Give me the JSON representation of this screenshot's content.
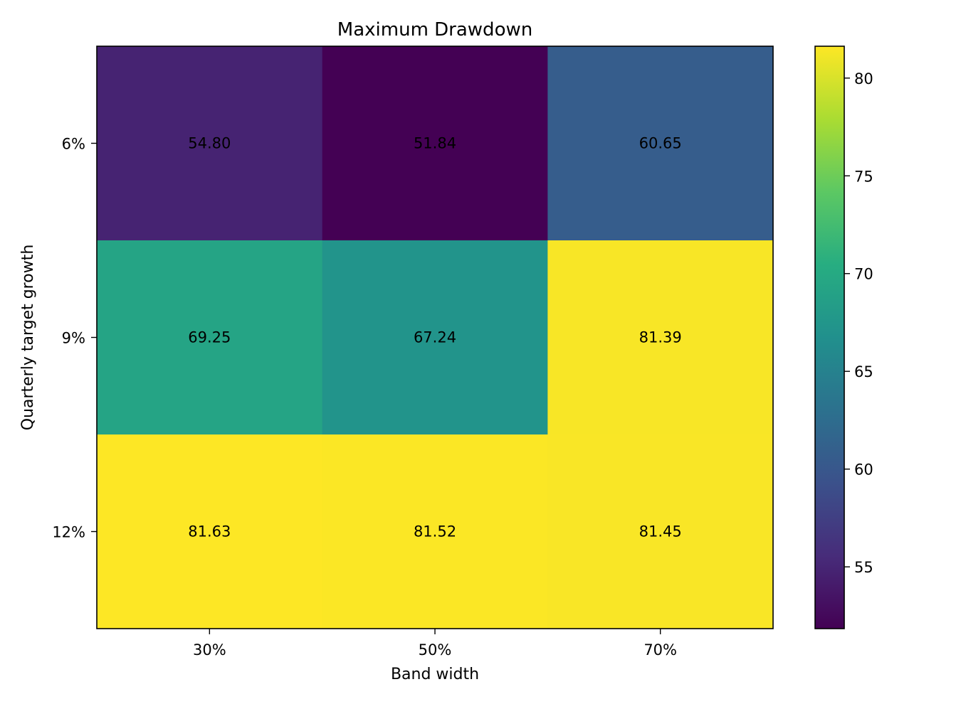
{
  "chart_data": {
    "type": "heatmap",
    "title": "Maximum Drawdown",
    "xlabel": "Band width",
    "ylabel": "Quarterly target growth",
    "x_categories": [
      "30%",
      "50%",
      "70%"
    ],
    "y_categories": [
      "6%",
      "9%",
      "12%"
    ],
    "values": [
      [
        54.8,
        51.84,
        60.65
      ],
      [
        69.25,
        67.24,
        81.39
      ],
      [
        81.63,
        81.52,
        81.45
      ]
    ],
    "value_labels": [
      [
        "54.80",
        "51.84",
        "60.65"
      ],
      [
        "69.25",
        "67.24",
        "81.39"
      ],
      [
        "81.63",
        "81.52",
        "81.45"
      ]
    ],
    "colorbar": {
      "colormap": "viridis",
      "vmin": 51.84,
      "vmax": 81.63,
      "ticks": [
        55,
        60,
        65,
        70,
        75,
        80
      ],
      "tick_labels": [
        "55",
        "60",
        "65",
        "70",
        "75",
        "80"
      ]
    },
    "grid": false
  }
}
